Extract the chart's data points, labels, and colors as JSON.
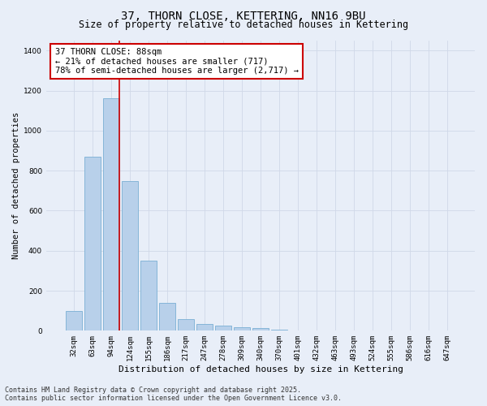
{
  "title_line1": "37, THORN CLOSE, KETTERING, NN16 9BU",
  "title_line2": "Size of property relative to detached houses in Kettering",
  "xlabel": "Distribution of detached houses by size in Kettering",
  "ylabel": "Number of detached properties",
  "categories": [
    "32sqm",
    "63sqm",
    "94sqm",
    "124sqm",
    "155sqm",
    "186sqm",
    "217sqm",
    "247sqm",
    "278sqm",
    "309sqm",
    "340sqm",
    "370sqm",
    "401sqm",
    "432sqm",
    "463sqm",
    "493sqm",
    "524sqm",
    "555sqm",
    "586sqm",
    "616sqm",
    "647sqm"
  ],
  "values": [
    100,
    870,
    1160,
    750,
    350,
    140,
    60,
    35,
    25,
    18,
    15,
    5,
    2,
    1,
    0,
    0,
    0,
    0,
    0,
    0,
    0
  ],
  "bar_color": "#b8d0ea",
  "bar_edge_color": "#7aafd4",
  "vline_color": "#cc0000",
  "vline_index": 2,
  "annotation_text": "37 THORN CLOSE: 88sqm\n← 21% of detached houses are smaller (717)\n78% of semi-detached houses are larger (2,717) →",
  "annotation_box_facecolor": "#ffffff",
  "annotation_box_edgecolor": "#cc0000",
  "ylim": [
    0,
    1450
  ],
  "yticks": [
    0,
    200,
    400,
    600,
    800,
    1000,
    1200,
    1400
  ],
  "grid_color": "#d0d8e8",
  "bg_color": "#e8eef8",
  "footer_line1": "Contains HM Land Registry data © Crown copyright and database right 2025.",
  "footer_line2": "Contains public sector information licensed under the Open Government Licence v3.0.",
  "title_fontsize": 10,
  "subtitle_fontsize": 8.5,
  "ylabel_fontsize": 7.5,
  "xlabel_fontsize": 8,
  "tick_fontsize": 6.5,
  "annotation_fontsize": 7.5,
  "footer_fontsize": 6
}
